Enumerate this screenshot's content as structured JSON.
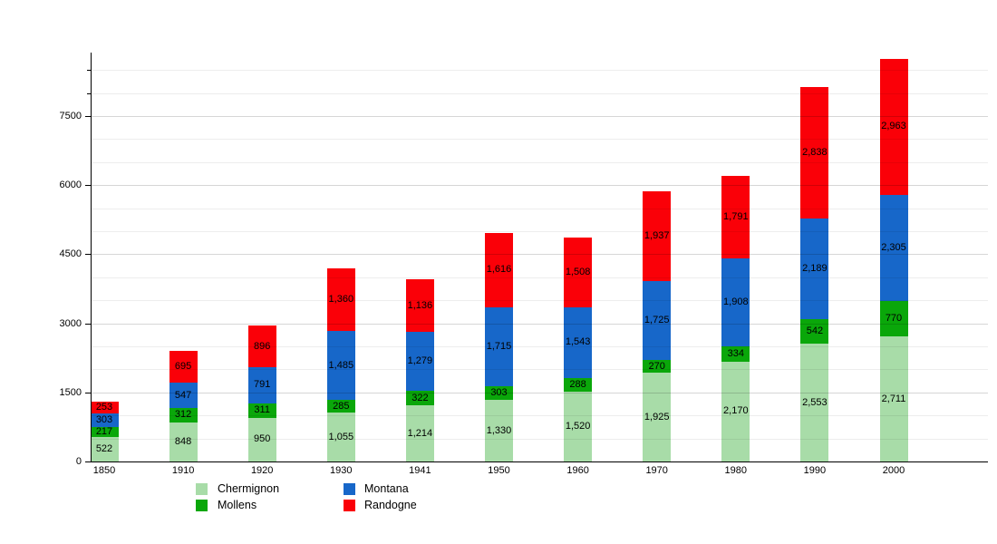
{
  "chart_data": {
    "type": "bar",
    "stacked": true,
    "categories": [
      "1850",
      "1910",
      "1920",
      "1930",
      "1941",
      "1950",
      "1960",
      "1970",
      "1980",
      "1990",
      "2000"
    ],
    "series": [
      {
        "name": "Chermignon",
        "color": "#A8DCA8",
        "values": [
          522,
          848,
          950,
          1055,
          1214,
          1330,
          1520,
          1925,
          2170,
          2553,
          2711
        ]
      },
      {
        "name": "Mollens",
        "color": "#0AA70A",
        "values": [
          217,
          312,
          311,
          285,
          322,
          303,
          288,
          270,
          334,
          542,
          770
        ]
      },
      {
        "name": "Montana",
        "color": "#1767C9",
        "values": [
          303,
          547,
          791,
          1485,
          1279,
          1715,
          1543,
          1725,
          1908,
          2189,
          2305
        ]
      },
      {
        "name": "Randogne",
        "color": "#FA0008",
        "values": [
          253,
          695,
          896,
          1360,
          1136,
          1616,
          1508,
          1937,
          1791,
          2838,
          2963
        ]
      }
    ],
    "y_axis": {
      "min": 0,
      "max": 8500,
      "major_step": 1500,
      "minor_step": 500,
      "tick_labels": [
        "0",
        "1500",
        "3000",
        "4500",
        "6000",
        "7500"
      ]
    },
    "value_labels_shown": true,
    "grid": true,
    "legend": {
      "position": "bottom",
      "entries": [
        "Chermignon",
        "Mollens",
        "Montana",
        "Randogne"
      ]
    }
  }
}
